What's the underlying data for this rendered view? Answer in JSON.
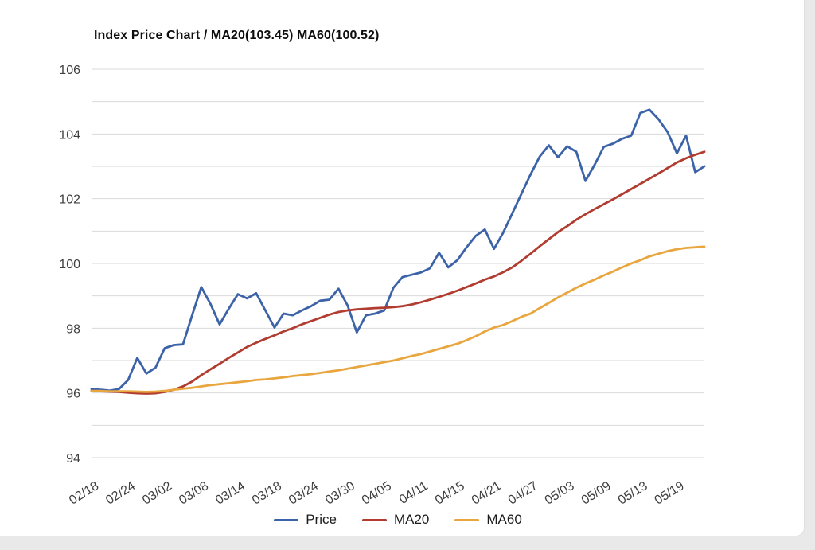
{
  "window": {
    "background": "#ffffff",
    "frame_color": "#e9e9e9",
    "grid_color": "#d9d9d9",
    "axis_label_color": "#3f3f3f"
  },
  "chart_data": {
    "type": "line",
    "title": "Index Price Chart / MA20(103.45) MA60(100.52)",
    "xlabel": "",
    "ylabel": "",
    "ylim": [
      94,
      106
    ],
    "y_ticks": [
      "94",
      "96",
      "98",
      "100",
      "102",
      "104",
      "106"
    ],
    "y_grid_step": 1,
    "grid": "horizontal only",
    "legend_position": "bottom-center",
    "x_labels": [
      "02/18",
      "02/24",
      "03/02",
      "03/08",
      "03/14",
      "03/18",
      "03/24",
      "03/30",
      "04/05",
      "04/11",
      "04/15",
      "04/21",
      "04/27",
      "05/03",
      "05/09",
      "05/13",
      "05/19"
    ],
    "x_label_every": 4,
    "series": [
      {
        "name": "Price",
        "color": "#3c63a8",
        "values": [
          96.12,
          96.1,
          96.07,
          96.12,
          96.4,
          97.08,
          96.6,
          96.78,
          97.38,
          97.48,
          97.5,
          98.4,
          99.27,
          98.75,
          98.12,
          98.6,
          99.05,
          98.92,
          99.08,
          98.55,
          98.02,
          98.45,
          98.4,
          98.55,
          98.68,
          98.85,
          98.88,
          99.22,
          98.7,
          97.87,
          98.4,
          98.45,
          98.55,
          99.25,
          99.58,
          99.65,
          99.72,
          99.85,
          100.33,
          99.88,
          100.1,
          100.5,
          100.85,
          101.05,
          100.45,
          100.95,
          101.55,
          102.15,
          102.75,
          103.3,
          103.65,
          103.28,
          103.62,
          103.45,
          102.55,
          103.05,
          103.6,
          103.7,
          103.85,
          103.95,
          104.65,
          104.75,
          104.45,
          104.05,
          103.4,
          103.95,
          102.82,
          103.0
        ]
      },
      {
        "name": "MA20",
        "color": "#b13c30",
        "values": [
          96.06,
          96.05,
          96.04,
          96.03,
          96.01,
          95.99,
          95.98,
          95.99,
          96.03,
          96.1,
          96.2,
          96.35,
          96.55,
          96.73,
          96.9,
          97.08,
          97.25,
          97.42,
          97.55,
          97.67,
          97.78,
          97.9,
          98.0,
          98.12,
          98.22,
          98.32,
          98.42,
          98.5,
          98.55,
          98.58,
          98.6,
          98.62,
          98.63,
          98.65,
          98.68,
          98.73,
          98.8,
          98.88,
          98.97,
          99.06,
          99.16,
          99.27,
          99.38,
          99.5,
          99.6,
          99.73,
          99.88,
          100.08,
          100.3,
          100.53,
          100.75,
          100.97,
          101.15,
          101.35,
          101.52,
          101.68,
          101.83,
          101.98,
          102.14,
          102.3,
          102.46,
          102.62,
          102.78,
          102.95,
          103.12,
          103.25,
          103.36,
          103.45
        ]
      },
      {
        "name": "MA60",
        "color": "#e9a63f",
        "values": [
          96.06,
          96.06,
          96.05,
          96.05,
          96.05,
          96.04,
          96.03,
          96.04,
          96.06,
          96.1,
          96.13,
          96.16,
          96.2,
          96.24,
          96.27,
          96.3,
          96.33,
          96.36,
          96.4,
          96.42,
          96.45,
          96.48,
          96.52,
          96.55,
          96.58,
          96.62,
          96.66,
          96.7,
          96.75,
          96.8,
          96.85,
          96.9,
          96.95,
          97.0,
          97.07,
          97.14,
          97.2,
          97.28,
          97.36,
          97.44,
          97.52,
          97.63,
          97.75,
          97.9,
          98.02,
          98.1,
          98.22,
          98.35,
          98.45,
          98.62,
          98.78,
          98.95,
          99.1,
          99.25,
          99.38,
          99.5,
          99.63,
          99.75,
          99.88,
          100.0,
          100.1,
          100.22,
          100.3,
          100.38,
          100.44,
          100.48,
          100.5,
          100.52
        ]
      }
    ]
  }
}
